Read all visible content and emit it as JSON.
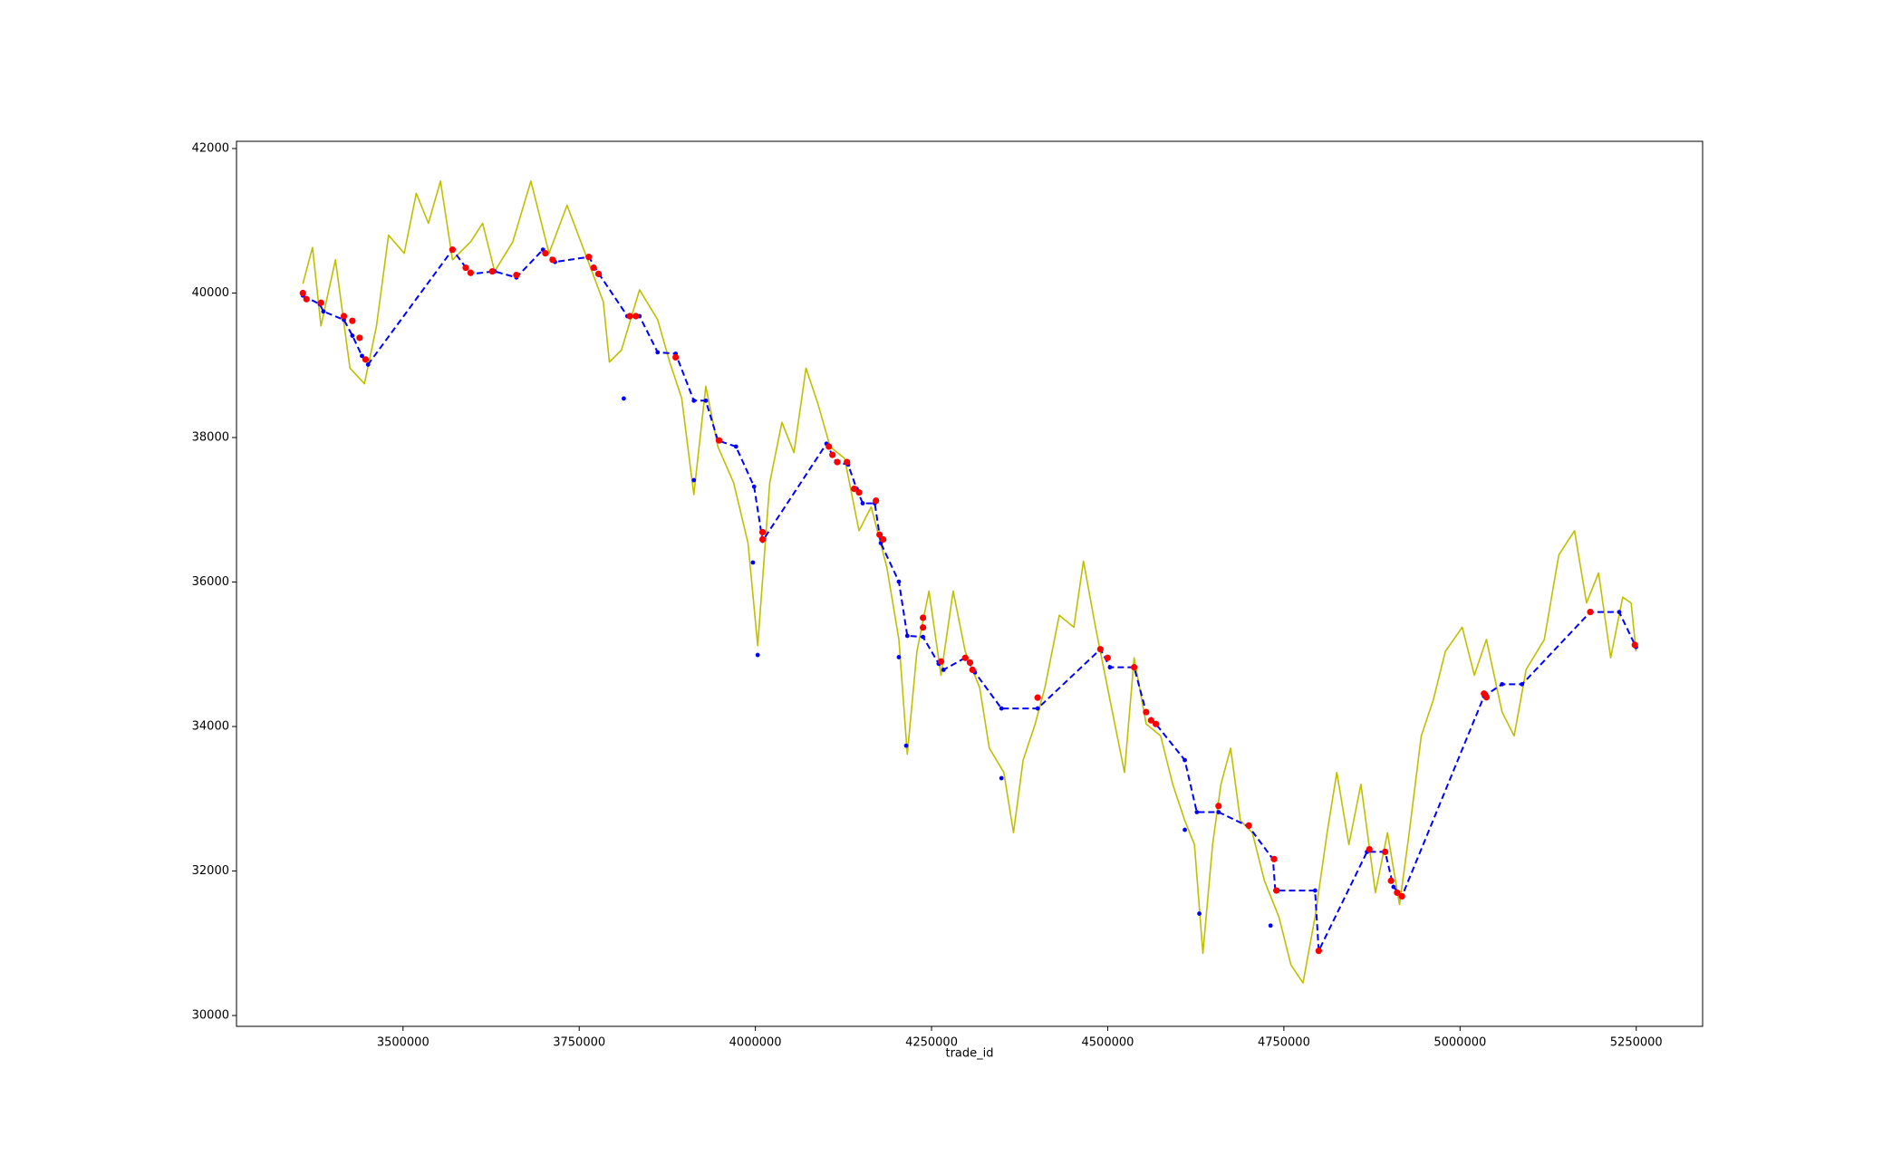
{
  "chart_data": {
    "type": "line",
    "xlabel": "trade_id",
    "xlim": [
      3263700,
      5344200
    ],
    "ylim": [
      29850,
      42100
    ],
    "xticks": [
      3500000,
      3750000,
      4000000,
      4250000,
      4500000,
      4750000,
      5000000,
      5250000
    ],
    "yticks": [
      30000,
      32000,
      34000,
      36000,
      38000,
      40000,
      42000
    ],
    "series": [
      {
        "color": "#bfbf00",
        "style": "solid",
        "x": [
          3357900,
          3371600,
          3383600,
          3404100,
          3424700,
          3445200,
          3462300,
          3479500,
          3501700,
          3518800,
          3536000,
          3553100,
          3570200,
          3595900,
          3613000,
          3630100,
          3655800,
          3681500,
          3707200,
          3732800,
          3758500,
          3784200,
          3792800,
          3809900,
          3835600,
          3861300,
          3878400,
          3895500,
          3912700,
          3929700,
          3946800,
          3969100,
          3989600,
          4003300,
          4020400,
          4037600,
          4054700,
          4071800,
          4088900,
          4106000,
          4126600,
          4147100,
          4164300,
          4186500,
          4203600,
          4215600,
          4229300,
          4246400,
          4263500,
          4280700,
          4297800,
          4318300,
          4332000,
          4352600,
          4366300,
          4380000,
          4397100,
          4410800,
          4431300,
          4451900,
          4465600,
          4482700,
          4499800,
          4523800,
          4537500,
          4554600,
          4575100,
          4592300,
          4609400,
          4623100,
          4635100,
          4648800,
          4660700,
          4674400,
          4688100,
          4705200,
          4722400,
          4742900,
          4760000,
          4777200,
          4794300,
          4811400,
          4825100,
          4842200,
          4859300,
          4879900,
          4897000,
          4914100,
          4927800,
          4944900,
          4962000,
          4979200,
          5003100,
          5020300,
          5037400,
          5059600,
          5076800,
          5093900,
          5119600,
          5140100,
          5162400,
          5179500,
          5196600,
          5213700,
          5230800,
          5242800,
          5249700
        ],
        "values": [
          40130,
          40630,
          39545,
          40460,
          38960,
          38745,
          39545,
          40800,
          40550,
          41380,
          40965,
          41550,
          40460,
          40710,
          40965,
          40300,
          40710,
          41550,
          40550,
          41215,
          40550,
          39880,
          39045,
          39210,
          40045,
          39630,
          39045,
          38545,
          37210,
          38710,
          37875,
          37375,
          36540,
          35120,
          37375,
          38210,
          37790,
          38960,
          38460,
          37875,
          37710,
          36710,
          37040,
          36205,
          35205,
          33615,
          35040,
          35875,
          34710,
          35875,
          35040,
          34535,
          33700,
          33365,
          32530,
          33535,
          34035,
          34535,
          35540,
          35375,
          36290,
          35375,
          34535,
          33365,
          34950,
          34035,
          33870,
          33200,
          32700,
          32365,
          30860,
          32365,
          33200,
          33700,
          32700,
          32530,
          31865,
          31365,
          30700,
          30450,
          31365,
          32530,
          33365,
          32365,
          33200,
          31700,
          32530,
          31535,
          32530,
          33870,
          34370,
          35040,
          35375,
          34710,
          35205,
          34200,
          33870,
          34790,
          35205,
          36375,
          36710,
          35710,
          36125,
          34950,
          35790,
          35710,
          35040
        ]
      },
      {
        "color": "#0000ff",
        "style": "dashed",
        "marker": "dot",
        "x": [
          3357900,
          3381900,
          3387000,
          3416100,
          3428100,
          3441800,
          3450400,
          3570200,
          3595900,
          3630100,
          3660900,
          3698600,
          3715700,
          3763600,
          3779100,
          3818400,
          3835600,
          3861300,
          3886900,
          3912700,
          3929700,
          3946800,
          3972500,
          3998200,
          4010200,
          4100900,
          4114600,
          4131700,
          4143700,
          4152300,
          4169400,
          4178000,
          4203600,
          4215600,
          4237900,
          4260100,
          4267000,
          4297800,
          4311500,
          4349200,
          4400600,
          4489600,
          4503200,
          4537500,
          4554600,
          4568300,
          4609400,
          4626500,
          4657300,
          4700200,
          4734400,
          4737800,
          4794300,
          4799400,
          4867900,
          4893600,
          4905600,
          4917500,
          5034000,
          5059600,
          5087900,
          5184800,
          5225800,
          5249700
        ],
        "values": [
          39965,
          39845,
          39745,
          39630,
          39410,
          39130,
          39010,
          40600,
          40265,
          40300,
          40215,
          40600,
          40430,
          40500,
          40250,
          39680,
          39680,
          39180,
          39160,
          38510,
          38510,
          37960,
          37875,
          37320,
          36570,
          37915,
          37660,
          37625,
          37290,
          37090,
          37090,
          36540,
          36005,
          35255,
          35240,
          34870,
          34785,
          34950,
          34750,
          34250,
          34250,
          35070,
          34820,
          34820,
          34200,
          34035,
          33535,
          32815,
          32815,
          32615,
          32165,
          31730,
          31730,
          30895,
          32265,
          32265,
          31780,
          31650,
          34420,
          34585,
          34585,
          35585,
          35585,
          35100
        ]
      },
      {
        "color": "#0000ff",
        "style": "none",
        "marker": "dot",
        "x": [
          3813300,
          3912700,
          3996500,
          4003300,
          4203600,
          4214000,
          4349200,
          4609400,
          4630000,
          4731100
        ],
        "values": [
          38540,
          37410,
          36270,
          34990,
          34960,
          33735,
          33285,
          32570,
          31410,
          31245
        ]
      },
      {
        "color": "#ff0000",
        "style": "none",
        "marker": "bigdot",
        "x": [
          3357900,
          3363000,
          3383600,
          3416100,
          3428100,
          3438400,
          3446900,
          3570200,
          3589000,
          3595900,
          3626700,
          3660900,
          3702000,
          3712300,
          3763600,
          3770500,
          3777400,
          3821800,
          3830400,
          3886900,
          3948500,
          4010200,
          4010200,
          4104300,
          4109400,
          4116300,
          4130000,
          4140200,
          4147100,
          4171100,
          4176200,
          4181400,
          4237900,
          4237900,
          4263500,
          4297800,
          4304600,
          4308100,
          4400600,
          4489600,
          4499800,
          4537500,
          4554600,
          4561500,
          4568300,
          4657300,
          4700200,
          4736100,
          4739500,
          4799400,
          4871300,
          4893600,
          4902100,
          4910700,
          4917500,
          5034000,
          5037400,
          5184800,
          5248000
        ],
        "values": [
          40000,
          39915,
          39865,
          39680,
          39615,
          39380,
          39080,
          40600,
          40350,
          40280,
          40300,
          40250,
          40550,
          40460,
          40500,
          40350,
          40265,
          39680,
          39680,
          39110,
          37960,
          36690,
          36590,
          37875,
          37760,
          37660,
          37660,
          37290,
          37240,
          37125,
          36655,
          36590,
          35505,
          35370,
          34900,
          34950,
          34885,
          34785,
          34400,
          35070,
          34950,
          34820,
          34200,
          34085,
          34035,
          32900,
          32630,
          32165,
          31730,
          30895,
          32300,
          32265,
          31865,
          31700,
          31650,
          34455,
          34405,
          35585,
          35130
        ]
      }
    ]
  }
}
